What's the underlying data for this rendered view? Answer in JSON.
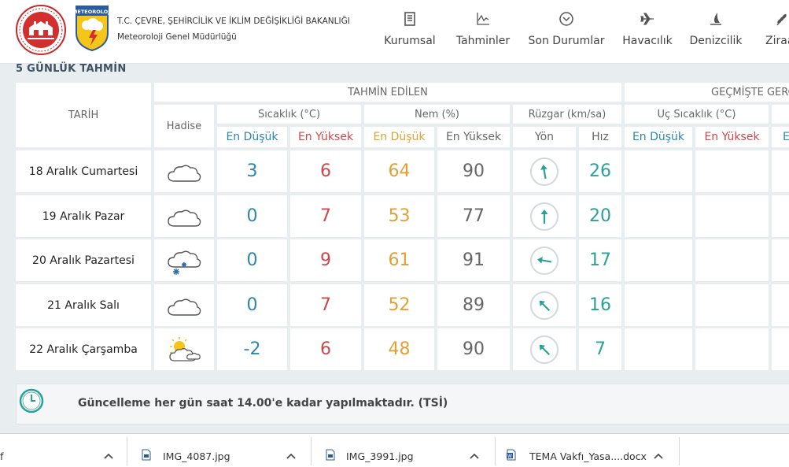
{
  "header": {
    "ministry_title": "T.C. ÇEVRE, ŞEHİRCİLİK VE İKLİM DEĞİŞİKLİĞİ BAKANLIĞI",
    "ministry_sub": "Meteoroloji Genel Müdürlüğü",
    "mgm_logo_text": "METEOROLOJİ",
    "nav": [
      {
        "label": "Kurumsal",
        "icon": "document-icon"
      },
      {
        "label": "Tahminler",
        "icon": "chart-icon"
      },
      {
        "label": "Son Durumlar",
        "icon": "chevron-circle-icon"
      },
      {
        "label": "Havacılık",
        "icon": "airplane-icon"
      },
      {
        "label": "Denizcilik",
        "icon": "sail-icon"
      },
      {
        "label": "Ziraat",
        "icon": "wheat-icon"
      }
    ]
  },
  "section_title": "5 GÜNLÜK TAHMİN",
  "table": {
    "group_forecast": "TAHMİN EDİLEN",
    "group_past": "GEÇMİŞTE GERÇEKLEŞEN",
    "col_date": "TARİH",
    "col_event": "Hadise",
    "col_temp": "Sıcaklık (°C)",
    "col_humidity": "Nem (%)",
    "col_wind": "Rüzgar (km/sa)",
    "col_extreme": "Uç Sıcaklık (°C)",
    "sub_min": "En Düşük",
    "sub_max": "En Yüksek",
    "sub_dir": "Yön",
    "sub_speed": "Hız",
    "rows": [
      {
        "date": "18 Aralık Cumartesi",
        "event": "cloud-icon",
        "tmin": "3",
        "tmax": "6",
        "hmin": "64",
        "hmax": "90",
        "dir_deg": 170,
        "speed": "26"
      },
      {
        "date": "19 Aralık Pazar",
        "event": "cloud-icon",
        "tmin": "0",
        "tmax": "7",
        "hmin": "53",
        "hmax": "77",
        "dir_deg": 180,
        "speed": "20"
      },
      {
        "date": "20 Aralık Pazartesi",
        "event": "cloud-snow-icon",
        "tmin": "0",
        "tmax": "9",
        "hmin": "61",
        "hmax": "91",
        "dir_deg": 100,
        "speed": "17"
      },
      {
        "date": "21 Aralık Salı",
        "event": "cloud-icon",
        "tmin": "0",
        "tmax": "7",
        "hmin": "52",
        "hmax": "89",
        "dir_deg": 135,
        "speed": "16"
      },
      {
        "date": "22 Aralık Çarşamba",
        "event": "sun-cloud-icon",
        "tmin": "-2",
        "tmax": "6",
        "hmin": "48",
        "hmax": "90",
        "dir_deg": 135,
        "speed": "7"
      }
    ]
  },
  "info": {
    "text": "Güncelleme her gün saat 14.00'e kadar yapılmaktadır. (TSİ)",
    "icon": "clock-icon"
  },
  "downloads": [
    {
      "name": "f"
    },
    {
      "name": "IMG_4087.jpg"
    },
    {
      "name": "IMG_3991.jpg"
    },
    {
      "name": "TEMA Vakfı_Yasa....docx"
    }
  ],
  "colors": {
    "accent": "#2aa198",
    "min_blue": "#2e86ab",
    "max_red": "#c9494b",
    "hum_orange": "#e0a036",
    "background": "#e8edf0"
  }
}
